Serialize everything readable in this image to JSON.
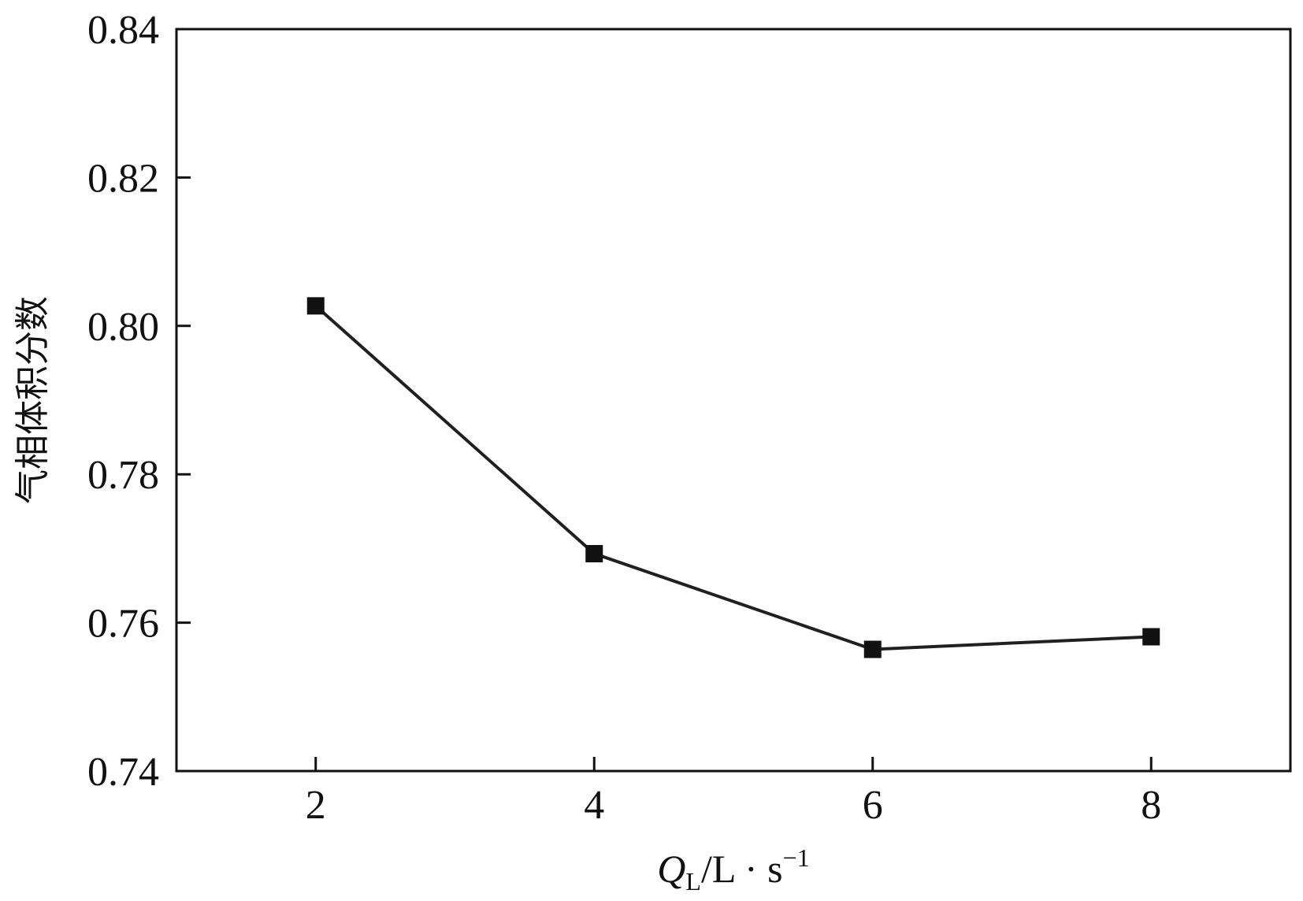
{
  "chart_data": {
    "type": "line",
    "title": "",
    "xlabel": {
      "symbol": "Q",
      "subscript": "L",
      "unit": "/L · s",
      "superscript": "−1"
    },
    "ylabel": "气相体积分数",
    "xlim": [
      1,
      9
    ],
    "ylim": [
      0.74,
      0.84
    ],
    "x_ticks": [
      2,
      4,
      6,
      8
    ],
    "x_tick_labels": [
      "2",
      "4",
      "6",
      "8"
    ],
    "y_ticks": [
      0.74,
      0.76,
      0.78,
      0.8,
      0.82,
      0.84
    ],
    "y_tick_labels": [
      "0.74",
      "0.76",
      "0.78",
      "0.80",
      "0.82",
      "0.84"
    ],
    "grid": false,
    "series": [
      {
        "marker": "square",
        "color": "#231f20",
        "x": [
          2,
          4,
          6,
          8
        ],
        "y": [
          0.8027,
          0.7693,
          0.7564,
          0.7581
        ]
      }
    ]
  }
}
